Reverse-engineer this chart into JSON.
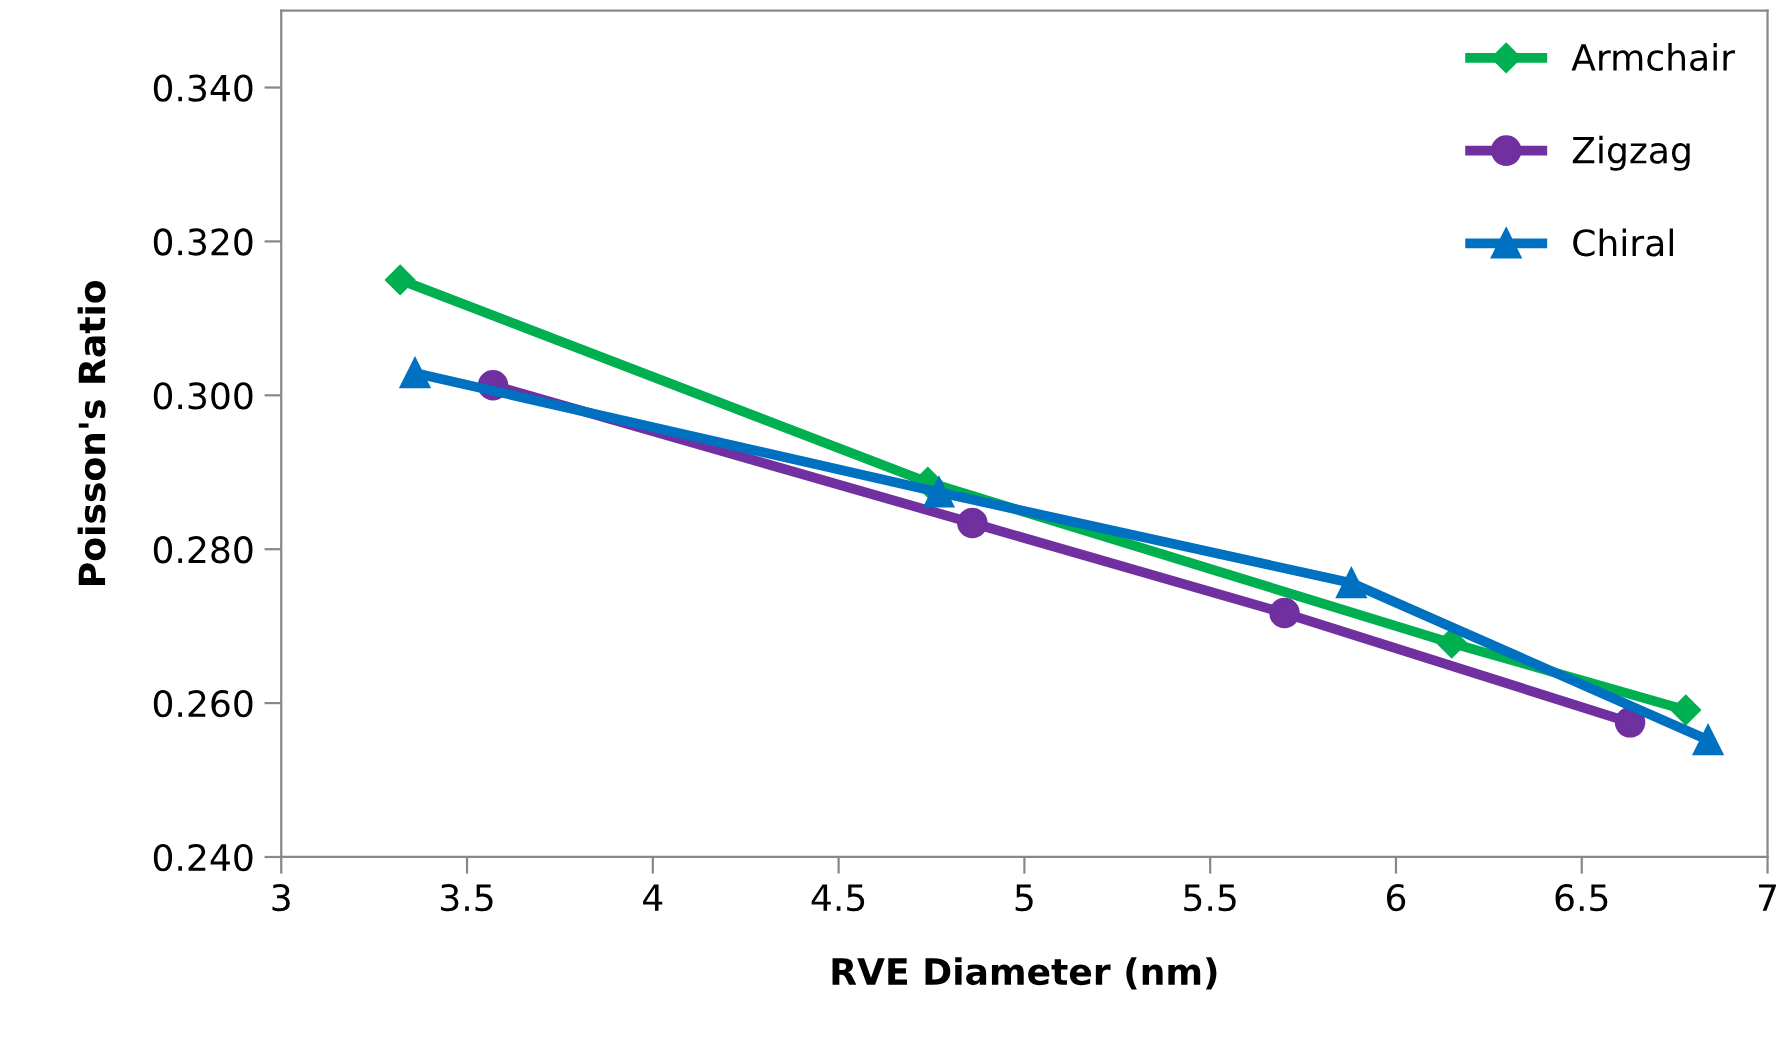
{
  "chart_data": {
    "type": "line",
    "xlabel": "RVE Diameter (nm)",
    "ylabel": "Poisson's Ratio",
    "xlim": [
      3,
      7
    ],
    "xticks": [
      3,
      3.5,
      4,
      4.5,
      5,
      5.5,
      6,
      6.5,
      7
    ],
    "ylim": [
      0.24,
      0.35
    ],
    "yticks": [
      {
        "value": 0.24,
        "label": "0.240"
      },
      {
        "value": 0.26,
        "label": "0.260"
      },
      {
        "value": 0.28,
        "label": "0.280"
      },
      {
        "value": 0.3,
        "label": "0.300"
      },
      {
        "value": 0.32,
        "label": "0.320"
      },
      {
        "value": 0.34,
        "label": "0.340"
      }
    ],
    "grid": false,
    "legend": "top right",
    "line_style": "solid",
    "series": [
      {
        "name": "Armchair",
        "color": "#00b050",
        "marker": "diamond",
        "x": [
          3.32,
          4.74,
          6.15,
          6.78
        ],
        "values": [
          0.315,
          0.2887,
          0.2678,
          0.2591
        ]
      },
      {
        "name": "Zigzag",
        "color": "#7030a0",
        "marker": "circle",
        "x": [
          3.57,
          4.86,
          5.7,
          6.63
        ],
        "values": [
          0.3013,
          0.2834,
          0.2717,
          0.2575
        ]
      },
      {
        "name": "Chiral",
        "color": "#0070c0",
        "marker": "triangle",
        "x": [
          3.36,
          4.77,
          5.88,
          6.84
        ],
        "values": [
          0.3029,
          0.2874,
          0.2756,
          0.2552
        ]
      }
    ]
  }
}
